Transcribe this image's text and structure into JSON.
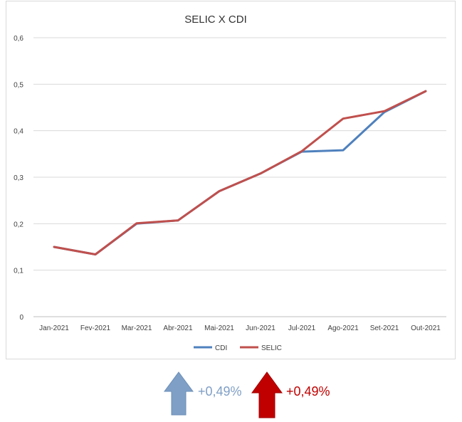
{
  "chart_data": {
    "type": "line",
    "title": "SELIC X CDI",
    "categories": [
      "Jan-2021",
      "Fev-2021",
      "Mar-2021",
      "Abr-2021",
      "Mai-2021",
      "Jun-2021",
      "Jul-2021",
      "Ago-2021",
      "Set-2021",
      "Out-2021"
    ],
    "series": [
      {
        "name": "CDI",
        "color": "#4f81bd",
        "values": [
          0.15,
          0.134,
          0.2,
          0.207,
          0.27,
          0.308,
          0.355,
          0.358,
          0.44,
          0.485
        ]
      },
      {
        "name": "SELIC",
        "color": "#c0504d",
        "values": [
          0.15,
          0.134,
          0.201,
          0.207,
          0.27,
          0.308,
          0.356,
          0.426,
          0.442,
          0.485
        ]
      }
    ],
    "ylim": [
      0,
      0.6
    ],
    "yticks": [
      "0",
      "0,1",
      "0,2",
      "0,3",
      "0,4",
      "0,5",
      "0,6"
    ],
    "ytick_values": [
      0,
      0.1,
      0.2,
      0.3,
      0.4,
      0.5,
      0.6
    ],
    "grid": true,
    "legend": "bottom",
    "xlabel": "",
    "ylabel": ""
  },
  "indicators": {
    "cdi": {
      "label": "+0,49%",
      "color": "#7f9fc6",
      "icon": "arrow-up-icon"
    },
    "selic": {
      "label": "+0,49%",
      "color": "#c00000",
      "icon": "arrow-up-icon"
    }
  }
}
